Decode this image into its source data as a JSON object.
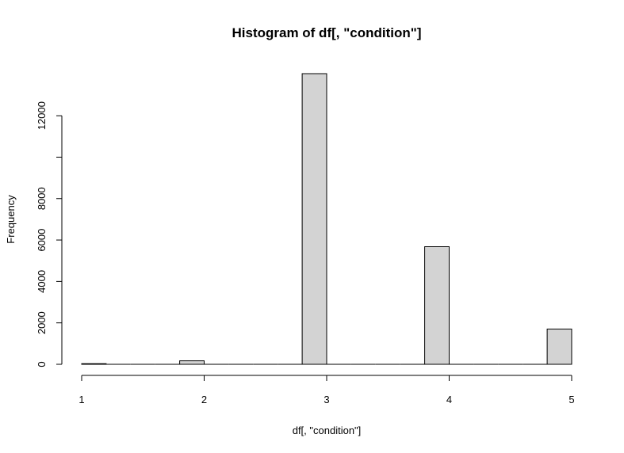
{
  "chart_data": {
    "type": "bar",
    "title": "Histogram of df[, \"condition\"]",
    "xlabel": "df[, \"condition\"]",
    "ylabel": "Frequency",
    "bins": [
      {
        "from": 1.0,
        "to": 1.2,
        "count": 30
      },
      {
        "from": 1.2,
        "to": 1.4,
        "count": 0
      },
      {
        "from": 1.4,
        "to": 1.6,
        "count": 0
      },
      {
        "from": 1.6,
        "to": 1.8,
        "count": 0
      },
      {
        "from": 1.8,
        "to": 2.0,
        "count": 170
      },
      {
        "from": 2.0,
        "to": 2.2,
        "count": 0
      },
      {
        "from": 2.2,
        "to": 2.4,
        "count": 0
      },
      {
        "from": 2.4,
        "to": 2.6,
        "count": 0
      },
      {
        "from": 2.6,
        "to": 2.8,
        "count": 0
      },
      {
        "from": 2.8,
        "to": 3.0,
        "count": 14031
      },
      {
        "from": 3.0,
        "to": 3.2,
        "count": 0
      },
      {
        "from": 3.2,
        "to": 3.4,
        "count": 0
      },
      {
        "from": 3.4,
        "to": 3.6,
        "count": 0
      },
      {
        "from": 3.6,
        "to": 3.8,
        "count": 0
      },
      {
        "from": 3.8,
        "to": 4.0,
        "count": 5679
      },
      {
        "from": 4.0,
        "to": 4.2,
        "count": 0
      },
      {
        "from": 4.2,
        "to": 4.4,
        "count": 0
      },
      {
        "from": 4.4,
        "to": 4.6,
        "count": 0
      },
      {
        "from": 4.6,
        "to": 4.8,
        "count": 0
      },
      {
        "from": 4.8,
        "to": 5.0,
        "count": 1701
      }
    ],
    "xlim": [
      1,
      5
    ],
    "ylim": [
      0,
      14031
    ],
    "x_ticks": [
      "1",
      "2",
      "3",
      "4",
      "5"
    ],
    "y_ticks": [
      "0",
      "2000",
      "4000",
      "6000",
      "8000",
      "12000"
    ],
    "grid": false,
    "bar_fill": "#d3d3d3",
    "bar_stroke": "#000000"
  }
}
